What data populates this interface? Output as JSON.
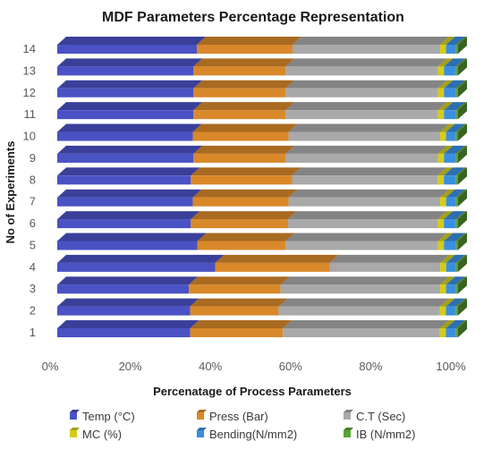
{
  "chart_data": {
    "type": "bar",
    "orientation": "horizontal",
    "stacking": "percent",
    "title": "MDF Parameters Percentage Representation",
    "xlabel": "Percenatage of Process Parameters",
    "ylabel": "No of Experiments",
    "xlim": [
      0,
      100
    ],
    "x_ticks": [
      "0%",
      "20%",
      "40%",
      "60%",
      "80%",
      "100%"
    ],
    "categories": [
      "1",
      "2",
      "3",
      "4",
      "5",
      "6",
      "7",
      "8",
      "9",
      "10",
      "11",
      "12",
      "13",
      "14"
    ],
    "legend_position": "bottom",
    "grid": false,
    "series": [
      {
        "name": "Temp (°C)",
        "color": "#4a52c4",
        "values": [
          33,
          33,
          33,
          40,
          35,
          33,
          34,
          33,
          34,
          34,
          34,
          34,
          34,
          35
        ]
      },
      {
        "name": "Press (Bar)",
        "color": "#d9882a",
        "values": [
          23,
          22,
          23,
          29,
          22,
          24,
          24,
          25,
          23,
          24,
          23,
          23,
          23,
          24
        ]
      },
      {
        "name": "C.T (Sec)",
        "color": "#a9a9a9",
        "values": [
          39,
          40,
          40,
          28,
          38,
          37,
          38,
          36,
          38,
          38,
          38,
          38,
          38,
          37
        ]
      },
      {
        "name": "MC (%)",
        "color": "#d4cc1a",
        "values": [
          1.5,
          1.5,
          1.5,
          1.5,
          1.5,
          1.5,
          1.5,
          1.5,
          1.5,
          1.5,
          1.5,
          1.5,
          1.5,
          1.5
        ]
      },
      {
        "name": "Bending(N/mm2)",
        "color": "#3a8ee0",
        "values": [
          2.5,
          2.5,
          2.5,
          2.5,
          3,
          3,
          2.5,
          3,
          3,
          2.5,
          3,
          3,
          3,
          2.5
        ]
      },
      {
        "name": "IB (N/mm2)",
        "color": "#5aa232",
        "values": [
          0.5,
          0.5,
          0.5,
          0.5,
          0.5,
          0.5,
          0.5,
          0.5,
          0.5,
          0.5,
          0.5,
          0.5,
          0.5,
          0.5
        ]
      }
    ]
  }
}
